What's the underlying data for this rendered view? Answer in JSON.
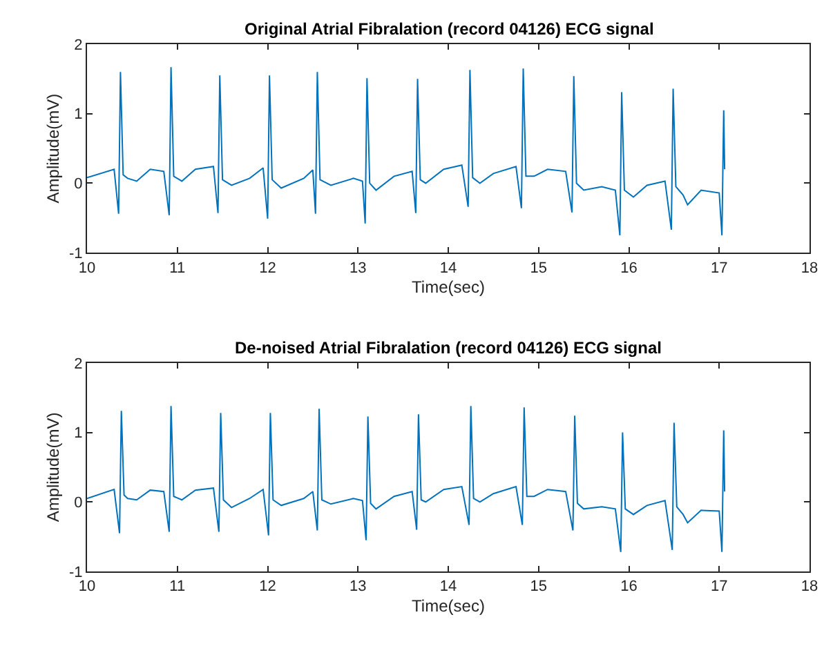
{
  "chart_data": [
    {
      "type": "line",
      "title": "Original Atrial Fibralation (record 04126) ECG signal",
      "xlabel": "Time(sec)",
      "ylabel": "Amplitude(mV)",
      "xlim": [
        10,
        18
      ],
      "xticks": [
        10,
        11,
        12,
        13,
        14,
        15,
        16,
        17,
        18
      ],
      "ylim": [
        -1,
        2
      ],
      "yticks": [
        -1,
        0,
        1,
        2
      ],
      "x": [
        10.0,
        10.3,
        10.35,
        10.37,
        10.4,
        10.45,
        10.55,
        10.7,
        10.85,
        10.91,
        10.93,
        10.96,
        11.05,
        11.2,
        11.4,
        11.45,
        11.47,
        11.5,
        11.6,
        11.8,
        11.95,
        12.0,
        12.02,
        12.05,
        12.15,
        12.4,
        12.5,
        12.53,
        12.55,
        12.58,
        12.7,
        12.95,
        13.05,
        13.08,
        13.1,
        13.13,
        13.2,
        13.4,
        13.6,
        13.64,
        13.66,
        13.69,
        13.75,
        13.95,
        14.15,
        14.22,
        14.24,
        14.27,
        14.35,
        14.5,
        14.75,
        14.81,
        14.83,
        14.86,
        14.95,
        15.1,
        15.3,
        15.37,
        15.39,
        15.42,
        15.5,
        15.7,
        15.85,
        15.9,
        15.92,
        15.95,
        16.05,
        16.2,
        16.4,
        16.47,
        16.49,
        16.52,
        16.6,
        16.65,
        16.8,
        17.0,
        17.03,
        17.05,
        17.06
      ],
      "series": [
        {
          "color": "#0072bd",
          "values": [
            0.08,
            0.2,
            -0.44,
            1.6,
            0.12,
            0.07,
            0.03,
            0.2,
            0.17,
            -0.46,
            1.67,
            0.1,
            0.03,
            0.2,
            0.24,
            -0.43,
            1.55,
            0.05,
            -0.03,
            0.07,
            0.22,
            -0.51,
            1.55,
            0.05,
            -0.07,
            0.07,
            0.19,
            -0.44,
            1.6,
            0.05,
            -0.03,
            0.07,
            0.03,
            -0.58,
            1.51,
            0.0,
            -0.1,
            0.1,
            0.17,
            -0.43,
            1.5,
            0.05,
            0.0,
            0.2,
            0.26,
            -0.34,
            1.63,
            0.08,
            0.0,
            0.14,
            0.24,
            -0.36,
            1.65,
            0.1,
            0.1,
            0.2,
            0.17,
            -0.42,
            1.54,
            0.0,
            -0.1,
            -0.05,
            -0.1,
            -0.75,
            1.31,
            -0.1,
            -0.2,
            -0.03,
            0.03,
            -0.67,
            1.36,
            -0.05,
            -0.17,
            -0.31,
            -0.1,
            -0.14,
            -0.75,
            1.05,
            0.2
          ]
        }
      ]
    },
    {
      "type": "line",
      "title": "De-noised Atrial Fibralation (record 04126) ECG signal",
      "xlabel": "Time(sec)",
      "ylabel": "Amplitude(mV)",
      "xlim": [
        10,
        18
      ],
      "xticks": [
        10,
        11,
        12,
        13,
        14,
        15,
        16,
        17,
        18
      ],
      "ylim": [
        -1,
        2
      ],
      "yticks": [
        -1,
        0,
        1,
        2
      ],
      "x": [
        10.0,
        10.3,
        10.36,
        10.38,
        10.41,
        10.45,
        10.55,
        10.7,
        10.85,
        10.91,
        10.93,
        10.96,
        11.05,
        11.2,
        11.4,
        11.46,
        11.48,
        11.51,
        11.6,
        11.8,
        11.95,
        12.01,
        12.03,
        12.06,
        12.15,
        12.4,
        12.5,
        12.55,
        12.57,
        12.6,
        12.7,
        12.95,
        13.05,
        13.09,
        13.11,
        13.14,
        13.2,
        13.4,
        13.6,
        13.65,
        13.67,
        13.7,
        13.75,
        13.95,
        14.15,
        14.23,
        14.25,
        14.28,
        14.35,
        14.5,
        14.75,
        14.82,
        14.84,
        14.87,
        14.95,
        15.1,
        15.3,
        15.38,
        15.4,
        15.43,
        15.5,
        15.7,
        15.85,
        15.91,
        15.93,
        15.96,
        16.05,
        16.2,
        16.4,
        16.48,
        16.5,
        16.53,
        16.6,
        16.65,
        16.8,
        17.0,
        17.03,
        17.05,
        17.06
      ],
      "series": [
        {
          "color": "#0072bd",
          "values": [
            0.05,
            0.18,
            -0.45,
            1.31,
            0.1,
            0.05,
            0.03,
            0.17,
            0.15,
            -0.43,
            1.38,
            0.08,
            0.03,
            0.17,
            0.2,
            -0.43,
            1.28,
            0.03,
            -0.08,
            0.05,
            0.18,
            -0.48,
            1.28,
            0.03,
            -0.05,
            0.05,
            0.15,
            -0.41,
            1.34,
            0.03,
            -0.03,
            0.05,
            0.02,
            -0.55,
            1.23,
            -0.02,
            -0.1,
            0.08,
            0.15,
            -0.4,
            1.26,
            0.03,
            0.0,
            0.18,
            0.22,
            -0.33,
            1.38,
            0.05,
            0.0,
            0.12,
            0.22,
            -0.33,
            1.36,
            0.08,
            0.08,
            0.18,
            0.15,
            -0.41,
            1.24,
            -0.02,
            -0.1,
            -0.07,
            -0.1,
            -0.72,
            1.0,
            -0.1,
            -0.18,
            -0.05,
            0.02,
            -0.69,
            1.14,
            -0.07,
            -0.18,
            -0.3,
            -0.12,
            -0.13,
            -0.72,
            1.03,
            0.15
          ]
        }
      ]
    }
  ]
}
